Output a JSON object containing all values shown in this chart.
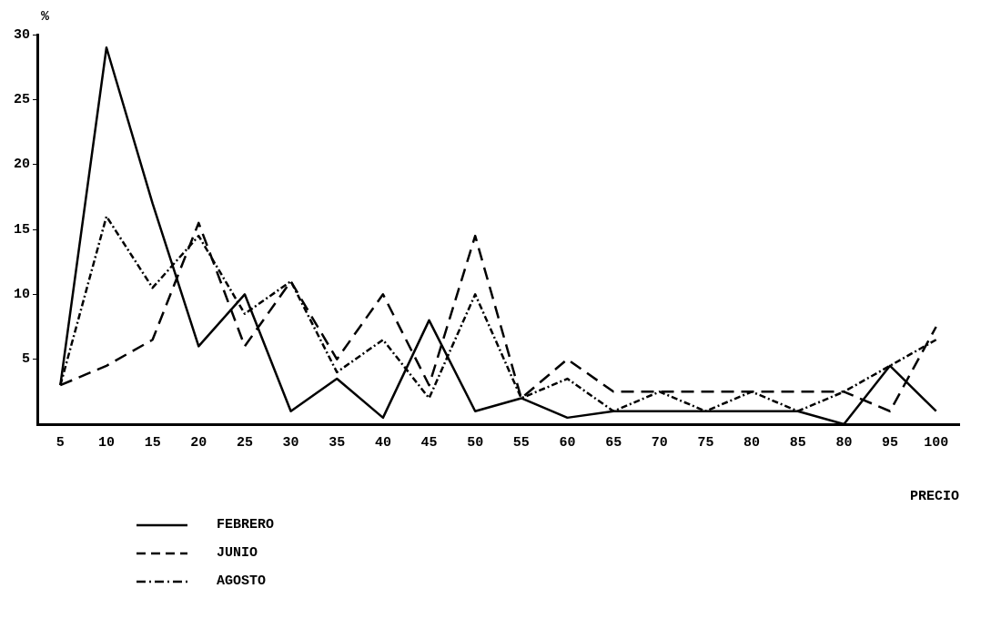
{
  "chart_data": {
    "type": "line",
    "ylabel": "%",
    "xlabel": "PRECIO",
    "categories": [
      "5",
      "10",
      "15",
      "20",
      "25",
      "30",
      "35",
      "40",
      "45",
      "50",
      "55",
      "60",
      "65",
      "70",
      "75",
      "80",
      "85",
      "80",
      "95",
      "100"
    ],
    "ylim": [
      0,
      30
    ],
    "yticks": [
      5,
      10,
      15,
      20,
      25,
      30
    ],
    "grid": false,
    "legend": "bottom left",
    "marker": "none",
    "series": [
      {
        "name": "FEBRERO",
        "color": "#000000",
        "line_style": "solid",
        "values": [
          3,
          29,
          17,
          6,
          10,
          1,
          3.5,
          0.5,
          8,
          1,
          2,
          0.5,
          1,
          1,
          1,
          1,
          1,
          0,
          4.5,
          1
        ]
      },
      {
        "name": "JUNIO",
        "color": "#000000",
        "line_style": "dashed",
        "values": [
          3,
          4.5,
          6.5,
          15.5,
          6,
          11,
          5,
          10,
          3,
          14.5,
          2,
          5,
          2.5,
          2.5,
          2.5,
          2.5,
          2.5,
          2.5,
          1,
          7.5
        ]
      },
      {
        "name": "AGOSTO",
        "color": "#000000",
        "line_style": "dashdot",
        "values": [
          3,
          16,
          10.5,
          14.5,
          8.5,
          11,
          4,
          6.5,
          2,
          10,
          2,
          3.5,
          1,
          2.5,
          1,
          2.5,
          1,
          2.5,
          4.5,
          6.5
        ]
      }
    ]
  }
}
